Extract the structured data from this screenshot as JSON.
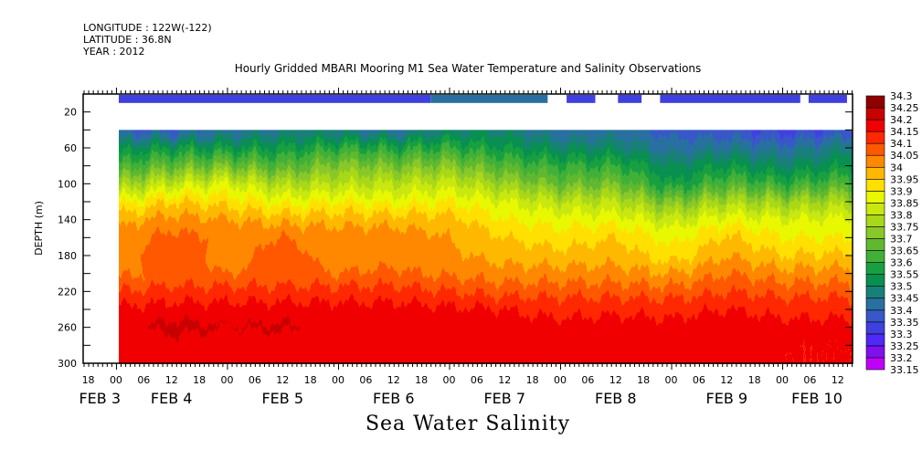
{
  "header": {
    "longitude": "LONGITUDE : 122W(-122)",
    "latitude": "LATITUDE : 36.8N",
    "year": "YEAR : 2012"
  },
  "chart_data": {
    "type": "heatmap",
    "title": "Hourly Gridded MBARI Mooring M1 Sea Water Temperature and Salinity Observations",
    "xlabel": "Sea Water Salinity",
    "ylabel": "DEPTH (m)",
    "ylim": [
      0,
      300
    ],
    "y_inverted": true,
    "y_tick_labels": [
      20,
      60,
      100,
      140,
      180,
      220,
      260,
      300
    ],
    "xlim_hours_from_feb4_00": [
      -7.1,
      159.2
    ],
    "x_tick_labels": [
      {
        "hour": -6,
        "label": "18"
      },
      {
        "hour": 0,
        "label": "00"
      },
      {
        "hour": 6,
        "label": "06"
      },
      {
        "hour": 12,
        "label": "12"
      },
      {
        "hour": 18,
        "label": "18"
      },
      {
        "hour": 24,
        "label": "00"
      },
      {
        "hour": 30,
        "label": "06"
      },
      {
        "hour": 36,
        "label": "12"
      },
      {
        "hour": 42,
        "label": "18"
      },
      {
        "hour": 48,
        "label": "00"
      },
      {
        "hour": 54,
        "label": "06"
      },
      {
        "hour": 60,
        "label": "12"
      },
      {
        "hour": 66,
        "label": "18"
      },
      {
        "hour": 72,
        "label": "00"
      },
      {
        "hour": 78,
        "label": "06"
      },
      {
        "hour": 84,
        "label": "12"
      },
      {
        "hour": 90,
        "label": "18"
      },
      {
        "hour": 96,
        "label": "00"
      },
      {
        "hour": 102,
        "label": "06"
      },
      {
        "hour": 108,
        "label": "12"
      },
      {
        "hour": 114,
        "label": "18"
      },
      {
        "hour": 120,
        "label": "00"
      },
      {
        "hour": 126,
        "label": "06"
      },
      {
        "hour": 132,
        "label": "12"
      },
      {
        "hour": 138,
        "label": "18"
      },
      {
        "hour": 144,
        "label": "00"
      },
      {
        "hour": 150,
        "label": "06"
      },
      {
        "hour": 156,
        "label": "12"
      }
    ],
    "day_labels": [
      {
        "hour": -3.5,
        "label": "FEB  3"
      },
      {
        "hour": 12,
        "label": "FEB  4"
      },
      {
        "hour": 36,
        "label": "FEB  5"
      },
      {
        "hour": 60,
        "label": "FEB  6"
      },
      {
        "hour": 84,
        "label": "FEB  7"
      },
      {
        "hour": 108,
        "label": "FEB  8"
      },
      {
        "hour": 132,
        "label": "FEB  9"
      },
      {
        "hour": 151.5,
        "label": "FEB 10"
      }
    ],
    "depths": [
      40,
      60,
      80,
      100,
      120,
      140,
      160,
      180,
      200,
      220,
      240,
      260,
      280,
      300
    ],
    "hours": [
      0.6,
      12,
      24,
      36,
      48,
      60,
      72,
      84,
      96,
      108,
      120,
      132,
      144,
      159
    ],
    "values": [
      [
        33.38,
        33.52,
        33.62,
        33.75,
        33.88,
        33.98,
        34.02,
        34.03,
        34.04,
        34.1,
        34.16,
        34.18,
        34.17,
        34.17
      ],
      [
        33.38,
        33.55,
        33.68,
        33.82,
        33.95,
        34.02,
        34.07,
        34.08,
        34.06,
        34.12,
        34.17,
        34.22,
        34.17,
        34.17
      ],
      [
        33.42,
        33.55,
        33.7,
        33.85,
        33.93,
        34.0,
        34.04,
        34.03,
        34.05,
        34.12,
        34.17,
        34.2,
        34.17,
        34.17
      ],
      [
        33.45,
        33.55,
        33.65,
        33.78,
        33.88,
        33.98,
        34.05,
        34.07,
        34.06,
        34.12,
        34.17,
        34.21,
        34.17,
        34.17
      ],
      [
        33.45,
        33.6,
        33.72,
        33.8,
        33.9,
        33.98,
        34.03,
        34.03,
        34.05,
        34.12,
        34.17,
        34.18,
        34.17,
        34.17
      ],
      [
        33.42,
        33.58,
        33.7,
        33.8,
        33.88,
        33.98,
        34.03,
        34.03,
        34.06,
        34.12,
        34.17,
        34.18,
        34.17,
        34.16
      ],
      [
        33.48,
        33.6,
        33.72,
        33.82,
        33.9,
        33.97,
        34.0,
        34.01,
        34.04,
        34.1,
        34.16,
        34.17,
        34.16,
        34.15
      ],
      [
        33.48,
        33.55,
        33.65,
        33.75,
        33.85,
        33.9,
        33.95,
        33.98,
        34.02,
        34.08,
        34.15,
        34.16,
        34.17,
        34.15
      ],
      [
        33.4,
        33.5,
        33.6,
        33.68,
        33.8,
        33.88,
        33.92,
        33.97,
        34.02,
        34.08,
        34.14,
        34.16,
        34.16,
        34.15
      ],
      [
        33.42,
        33.5,
        33.6,
        33.7,
        33.8,
        33.88,
        33.95,
        33.98,
        34.02,
        34.08,
        34.14,
        34.17,
        34.16,
        34.16
      ],
      [
        33.38,
        33.42,
        33.5,
        33.55,
        33.7,
        33.82,
        33.88,
        33.92,
        34.0,
        34.07,
        34.14,
        34.16,
        34.17,
        34.16
      ],
      [
        33.36,
        33.45,
        33.55,
        33.65,
        33.78,
        33.88,
        33.96,
        34.0,
        34.05,
        34.1,
        34.15,
        34.17,
        34.17,
        34.16
      ],
      [
        33.33,
        33.42,
        33.5,
        33.6,
        33.75,
        33.85,
        33.9,
        33.95,
        34.02,
        34.08,
        34.14,
        34.16,
        34.15,
        34.15
      ],
      [
        33.36,
        33.48,
        33.55,
        33.65,
        33.78,
        33.86,
        33.9,
        33.96,
        34.02,
        34.08,
        34.14,
        34.16,
        34.15,
        34.15
      ]
    ],
    "surface": {
      "depth_range": [
        1,
        10
      ],
      "segments": [
        {
          "hours": [
            0.6,
            68
          ],
          "value": 33.33
        },
        {
          "hours": [
            68,
            93.3
          ],
          "value": 33.42
        },
        {
          "hours": [
            97.4,
            103.6
          ],
          "value": 33.33
        },
        {
          "hours": [
            108.5,
            113.6
          ],
          "value": 33.33
        },
        {
          "hours": [
            117.6,
            147.9
          ],
          "value": 33.31
        },
        {
          "hours": [
            149.7,
            158.0
          ],
          "value": 33.33
        }
      ]
    },
    "colorbar": {
      "labels": [
        "34.3",
        "34.25",
        "34.2",
        "34.15",
        "34.1",
        "34.05",
        "34",
        "33.95",
        "33.9",
        "33.85",
        "33.8",
        "33.75",
        "33.7",
        "33.65",
        "33.6",
        "33.55",
        "33.5",
        "33.45",
        "33.4",
        "33.35",
        "33.3",
        "33.25",
        "33.2",
        "33.15"
      ],
      "min": 33.15,
      "step": 0.05,
      "colors_low_to_high": [
        "#c000f8",
        "#8010f0",
        "#5028f8",
        "#4040e0",
        "#3858c8",
        "#2870a0",
        "#188078",
        "#089050",
        "#18a040",
        "#40b038",
        "#60b830",
        "#88c828",
        "#a8d818",
        "#c8e810",
        "#e8f800",
        "#ffe000",
        "#ffb800",
        "#ff8800",
        "#ff5800",
        "#ff2800",
        "#f00000",
        "#c80000",
        "#900000"
      ]
    }
  }
}
